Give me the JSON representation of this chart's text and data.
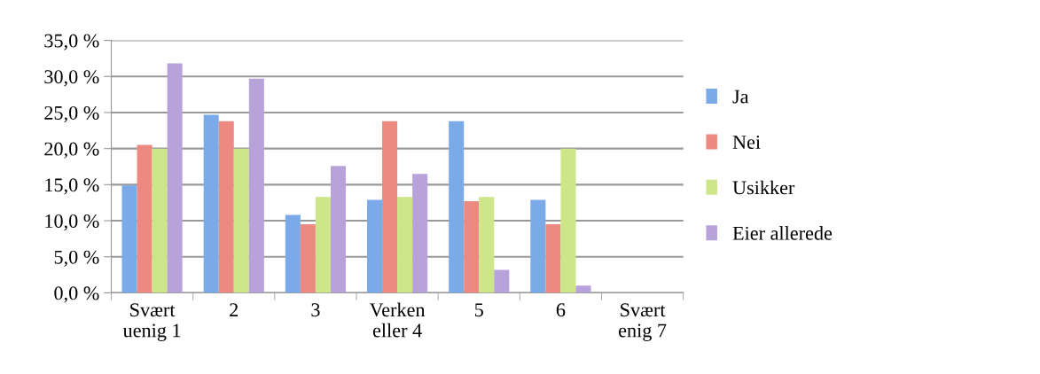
{
  "chart_data": {
    "type": "bar",
    "categories": [
      "Svært\nuenig 1",
      "2",
      "3",
      "Verken\neller 4",
      "5",
      "6",
      "Svært\nenig 7"
    ],
    "series": [
      {
        "name": "Ja",
        "color": "#7aaae8",
        "values": [
          14.9,
          24.7,
          10.8,
          12.9,
          23.8,
          12.9,
          0
        ]
      },
      {
        "name": "Nei",
        "color": "#ec8a82",
        "values": [
          20.5,
          23.8,
          9.5,
          23.8,
          12.7,
          9.5,
          0
        ]
      },
      {
        "name": "Usikker",
        "color": "#cde68a",
        "values": [
          20.0,
          20.0,
          13.3,
          13.3,
          13.3,
          20.0,
          0
        ]
      },
      {
        "name": "Eier allerede",
        "color": "#b8a2da",
        "values": [
          31.8,
          29.7,
          17.6,
          16.5,
          3.2,
          1.0,
          0
        ]
      }
    ],
    "ylim": [
      0,
      35
    ],
    "yticks": [
      {
        "value": 0,
        "label": "0,0 %"
      },
      {
        "value": 5,
        "label": "5,0 %"
      },
      {
        "value": 10,
        "label": "10,0 %"
      },
      {
        "value": 15,
        "label": "15,0 %"
      },
      {
        "value": 20,
        "label": "20,0 %"
      },
      {
        "value": 25,
        "label": "25,0 %"
      },
      {
        "value": 30,
        "label": "30,0 %"
      },
      {
        "value": 35,
        "label": "35,0 %"
      }
    ],
    "grid": "y",
    "legend": "right"
  }
}
